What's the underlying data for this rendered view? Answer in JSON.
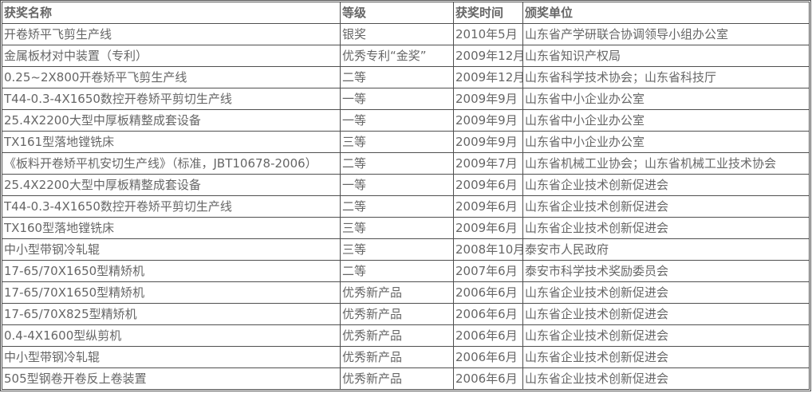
{
  "table": {
    "name": "awards-table",
    "headers": [
      "获奖名称",
      "等级",
      "获奖时间",
      "颁奖单位"
    ],
    "rows": [
      {
        "name": "开卷矫平飞剪生产线",
        "grade": "银奖",
        "date": "2010年5月",
        "unit": "山东省产学研联合协调领导小组办公室"
      },
      {
        "name": "金属板材对中装置（专利）",
        "grade": "优秀专利“金奖”",
        "date": "2009年12月",
        "unit": "山东省知识产权局"
      },
      {
        "name": "0.25~2X800开卷矫平飞剪生产线",
        "grade": "二等",
        "date": "2009年12月",
        "unit": "山东省科学技术协会；山东省科技厅"
      },
      {
        "name": "T44-0.3-4X1650数控开卷矫平剪切生产线",
        "grade": "一等",
        "date": "2009年9月",
        "unit": "山东省中小企业办公室"
      },
      {
        "name": "25.4X2200大型中厚板精整成套设备",
        "grade": "一等",
        "date": "2009年9月",
        "unit": "山东省中小企业办公室"
      },
      {
        "name": "TX161型落地镗铣床",
        "grade": "三等",
        "date": "2009年9月",
        "unit": "山东省中小企业办公室"
      },
      {
        "name": "《板料开卷矫平机安切生产线》（标准，JBT10678-2006）",
        "grade": "二等",
        "date": "2009年7月",
        "unit": "山东省机械工业协会；山东省机械工业技术协会"
      },
      {
        "name": "25.4X2200大型中厚板精整成套设备",
        "grade": "一等",
        "date": "2009年6月",
        "unit": "山东省企业技术创新促进会"
      },
      {
        "name": "T44-0.3-4X1650数控开卷矫平剪切生产线",
        "grade": "二等",
        "date": "2009年6月",
        "unit": "山东省企业技术创新促进会"
      },
      {
        "name": "TX160型落地镗铣床",
        "grade": "三等",
        "date": "2009年6月",
        "unit": "山东省企业技术创新促进会"
      },
      {
        "name": "中小型带钢冷轧辊",
        "grade": "三等",
        "date": "2008年10月",
        "unit": "泰安市人民政府"
      },
      {
        "name": "17-65/70X1650型精矫机",
        "grade": "二等",
        "date": "2007年6月",
        "unit": "泰安市科学技术奖励委员会"
      },
      {
        "name": "17-65/70X1650型精矫机",
        "grade": "优秀新产品",
        "date": "2006年6月",
        "unit": "山东省企业技术创新促进会"
      },
      {
        "name": "17-65/70X825型精矫机",
        "grade": "优秀新产品",
        "date": "2006年6月",
        "unit": "山东省企业技术创新促进会"
      },
      {
        "name": "0.4-4X1600型纵剪机",
        "grade": "优秀新产品",
        "date": "2006年6月",
        "unit": "山东省企业技术创新促进会"
      },
      {
        "name": "中小型带钢冷轧辊",
        "grade": "优秀新产品",
        "date": "2006年6月",
        "unit": "山东省企业技术创新促进会"
      },
      {
        "name": "505型钢卷开卷反上卷装置",
        "grade": "优秀新产品",
        "date": "2006年6月",
        "unit": "山东省企业技术创新促进会"
      }
    ]
  },
  "colors": {
    "text": "#666666",
    "border": "#4f4f4f",
    "background": "#ffffff"
  }
}
